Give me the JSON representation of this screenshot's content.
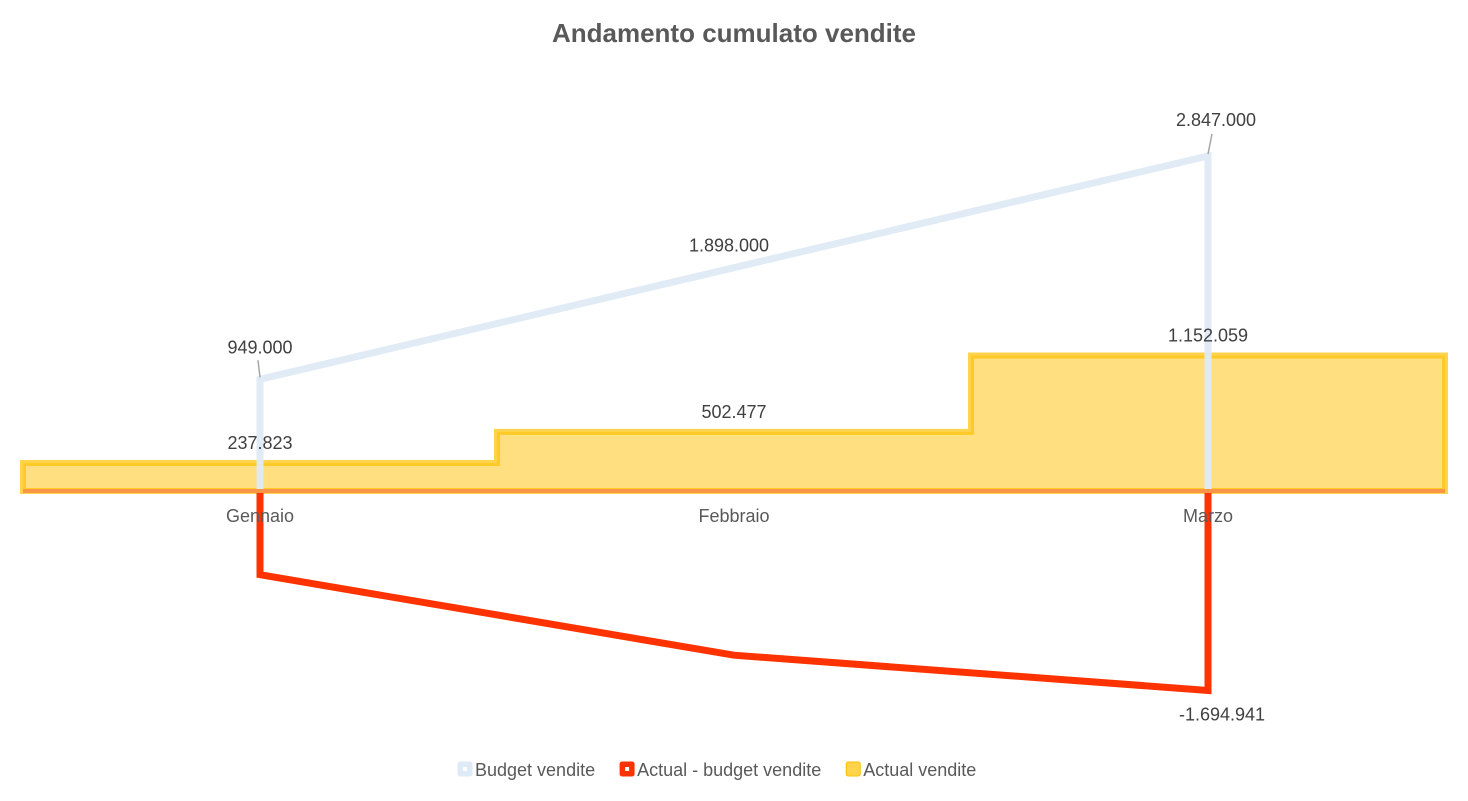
{
  "chart_data": {
    "type": "line",
    "title": "Andamento cumulato vendite",
    "xlabel": "",
    "ylabel": "",
    "categories": [
      "Gennaio",
      "Febbraio",
      "Marzo"
    ],
    "series": [
      {
        "name": "Budget vendite",
        "kind": "line",
        "color": "#DEEAF6",
        "values": [
          949000,
          1898000,
          2847000
        ],
        "labels": [
          "949.000",
          "1.898.000",
          "2.847.000"
        ]
      },
      {
        "name": "Actual - budget vendite",
        "kind": "line",
        "color": "#FF3300",
        "values": [
          -711177,
          -1395523,
          -1694941
        ],
        "labels": [
          "",
          "",
          "-1.694.941"
        ]
      },
      {
        "name": "Actual vendite",
        "kind": "area-step",
        "color": "#FFC000",
        "values": [
          237823,
          502477,
          1152059
        ],
        "labels": [
          "237.823",
          "502.477",
          "1.152.059"
        ]
      }
    ],
    "ylim": [
      -1694941,
      2847000
    ],
    "grid": false,
    "legend_position": "bottom"
  }
}
